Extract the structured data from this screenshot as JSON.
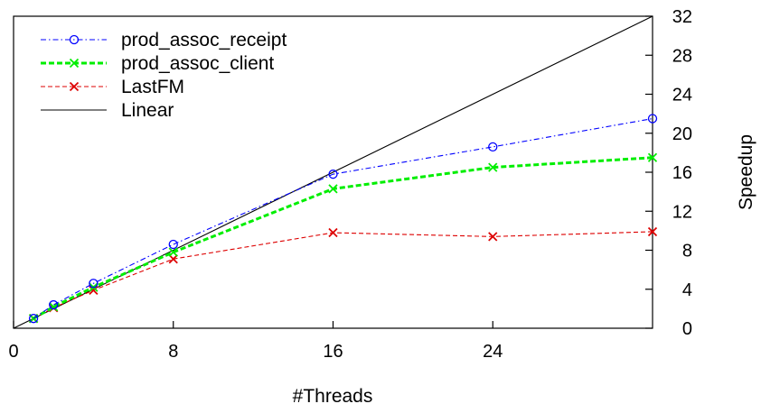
{
  "chart_data": {
    "type": "line",
    "title": "",
    "xlabel": "#Threads",
    "ylabel": "Speedup",
    "xlim": [
      0,
      32
    ],
    "ylim": [
      0,
      32
    ],
    "xticks": [
      0,
      8,
      16,
      24
    ],
    "yticks": [
      0,
      4,
      8,
      12,
      16,
      20,
      24,
      28,
      32
    ],
    "y_axis_side": "right",
    "grid": false,
    "legend": "top-left",
    "series": [
      {
        "name": "prod_assoc_receipt",
        "color": "#0000ff",
        "marker": "circle",
        "dash": "dash-dot",
        "x": [
          1,
          2,
          4,
          8,
          16,
          24,
          32
        ],
        "y": [
          1.0,
          2.4,
          4.6,
          8.6,
          15.8,
          18.6,
          21.5
        ]
      },
      {
        "name": "prod_assoc_client",
        "color": "#00ee00",
        "marker": "x",
        "dash": "dashed-bold",
        "x": [
          1,
          2,
          4,
          8,
          16,
          24,
          32
        ],
        "y": [
          1.0,
          2.2,
          4.2,
          7.8,
          14.3,
          16.5,
          17.5
        ]
      },
      {
        "name": "LastFM",
        "color": "#dd0000",
        "marker": "x",
        "dash": "dashed",
        "x": [
          1,
          2,
          4,
          8,
          16,
          24,
          32
        ],
        "y": [
          1.0,
          2.1,
          3.9,
          7.1,
          9.8,
          9.4,
          9.9
        ]
      },
      {
        "name": "Linear",
        "color": "#000000",
        "marker": "none",
        "dash": "solid",
        "x": [
          0,
          32
        ],
        "y": [
          0,
          32
        ]
      }
    ]
  }
}
